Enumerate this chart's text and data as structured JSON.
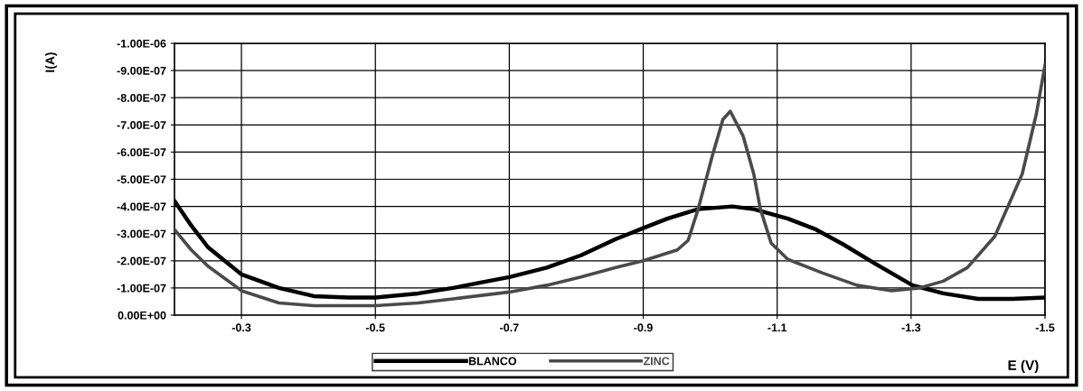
{
  "chart_data": {
    "type": "line",
    "xlabel": "E (V)",
    "ylabel": "I(A)",
    "xlim": [
      -0.2,
      -1.5
    ],
    "xticks": [
      -0.3,
      -0.5,
      -0.7,
      -0.9,
      -1.1,
      -1.3,
      -1.5
    ],
    "ylim": [
      0,
      -1e-06
    ],
    "yticks": [
      {
        "value": 0,
        "label": "0.00E+00"
      },
      {
        "value": -1e-07,
        "label": "-1.00E-07"
      },
      {
        "value": -2e-07,
        "label": "-2.00E-07"
      },
      {
        "value": -3e-07,
        "label": "-3.00E-07"
      },
      {
        "value": -4e-07,
        "label": "-4.00E-07"
      },
      {
        "value": -5e-07,
        "label": "-5.00E-07"
      },
      {
        "value": -6e-07,
        "label": "-6.00E-07"
      },
      {
        "value": -7e-07,
        "label": "-7.00E-07"
      },
      {
        "value": -8e-07,
        "label": "-8.00E-07"
      },
      {
        "value": -9e-07,
        "label": "-9.00E-07"
      },
      {
        "value": -1e-06,
        "label": "-1.00E-06"
      }
    ],
    "grid": true,
    "legend": "bottom",
    "marker": "none",
    "line_style": "solid",
    "series": [
      {
        "name": "BLANCO",
        "color": "#000000",
        "x": [
          -0.2,
          -0.225,
          -0.25,
          -0.3,
          -0.356,
          -0.408,
          -0.46,
          -0.5,
          -0.564,
          -0.616,
          -0.668,
          -0.7,
          -0.756,
          -0.807,
          -0.859,
          -0.9,
          -0.936,
          -0.982,
          -1.033,
          -1.065,
          -1.116,
          -1.158,
          -1.199,
          -1.246,
          -1.302,
          -1.348,
          -1.4,
          -1.451,
          -1.5
        ],
        "values": [
          -4.2e-07,
          -3.3e-07,
          -2.5e-07,
          -1.5e-07,
          -1e-07,
          -7e-08,
          -6.5e-08,
          -6.5e-08,
          -8e-08,
          -1e-07,
          -1.25e-07,
          -1.4e-07,
          -1.75e-07,
          -2.2e-07,
          -2.8e-07,
          -3.2e-07,
          -3.55e-07,
          -3.9e-07,
          -4e-07,
          -3.9e-07,
          -3.55e-07,
          -3.15e-07,
          -2.6e-07,
          -1.9e-07,
          -1.1e-07,
          -8e-08,
          -6e-08,
          -6e-08,
          -6.5e-08
        ]
      },
      {
        "name": "ZINC",
        "color": "#4a4a4a",
        "x": [
          -0.2,
          -0.225,
          -0.25,
          -0.3,
          -0.356,
          -0.408,
          -0.46,
          -0.5,
          -0.564,
          -0.616,
          -0.7,
          -0.756,
          -0.807,
          -0.859,
          -0.9,
          -0.951,
          -0.967,
          -0.982,
          -1.003,
          -1.019,
          -1.03,
          -1.049,
          -1.065,
          -1.075,
          -1.091,
          -1.116,
          -1.168,
          -1.219,
          -1.271,
          -1.312,
          -1.348,
          -1.384,
          -1.425,
          -1.466,
          -1.487,
          -1.5
        ],
        "values": [
          -3.15e-07,
          -2.4e-07,
          -1.8e-07,
          -9e-08,
          -4.5e-08,
          -3.5e-08,
          -3.5e-08,
          -3.5e-08,
          -4.5e-08,
          -6e-08,
          -8.5e-08,
          -1.1e-07,
          -1.4e-07,
          -1.75e-07,
          -2e-07,
          -2.4e-07,
          -2.75e-07,
          -3.9e-07,
          -5.85e-07,
          -7.2e-07,
          -7.5e-07,
          -6.6e-07,
          -5.2e-07,
          -3.9e-07,
          -2.65e-07,
          -2.05e-07,
          -1.55e-07,
          -1.1e-07,
          -9e-08,
          -1e-07,
          -1.25e-07,
          -1.75e-07,
          -2.9e-07,
          -5.2e-07,
          -7.4e-07,
          -9.2e-07
        ]
      }
    ]
  }
}
